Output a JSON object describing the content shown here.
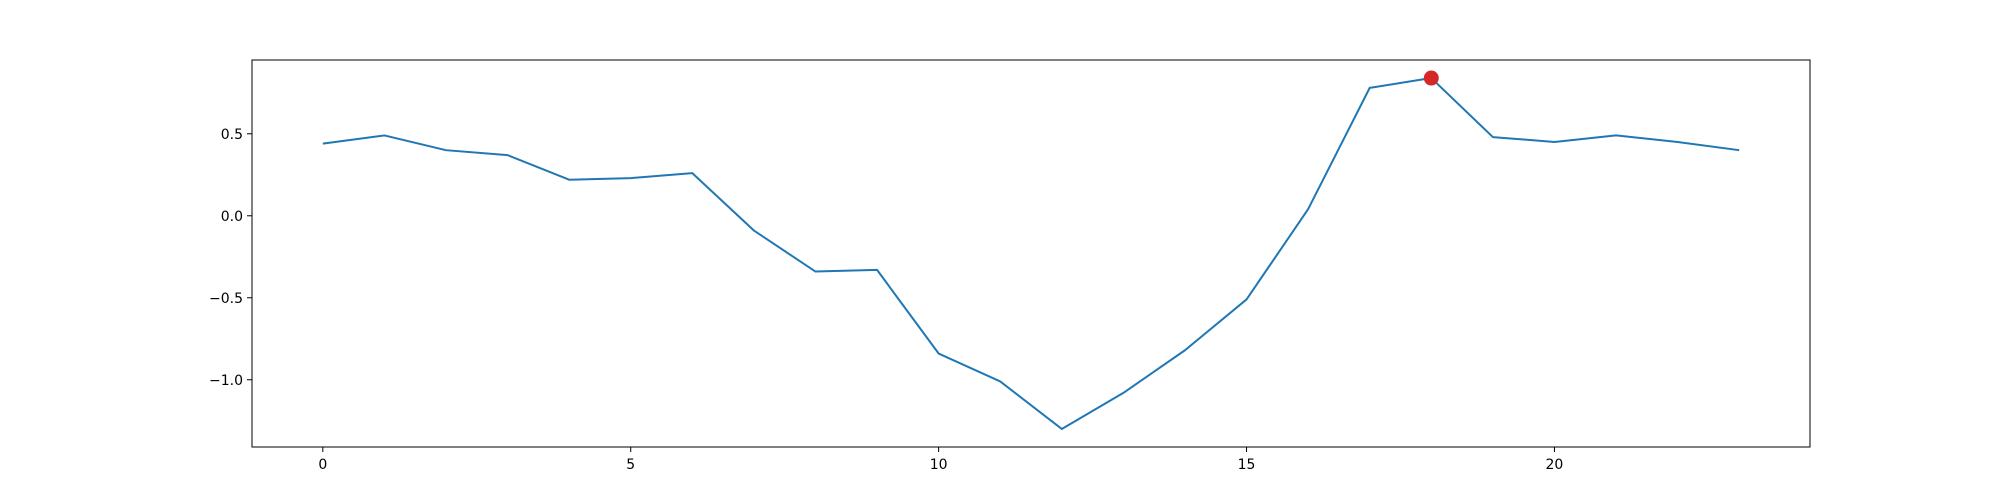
{
  "chart_data": {
    "type": "line",
    "title": "",
    "xlabel": "",
    "ylabel": "",
    "x": [
      0,
      1,
      2,
      3,
      4,
      5,
      6,
      7,
      8,
      9,
      10,
      11,
      12,
      13,
      14,
      15,
      16,
      17,
      18,
      19,
      20,
      21,
      22,
      23
    ],
    "series": [
      {
        "color": "#1f77b4",
        "values": [
          0.44,
          0.49,
          0.4,
          0.37,
          0.22,
          0.23,
          0.26,
          -0.09,
          -0.34,
          -0.33,
          -0.84,
          -1.01,
          -1.3,
          -1.08,
          -0.82,
          -0.51,
          0.04,
          0.78,
          0.84,
          0.48,
          0.45,
          0.49,
          0.45,
          0.4
        ]
      }
    ],
    "highlight": {
      "x": 18,
      "y": 0.84,
      "color": "#d62728"
    },
    "xlim": [
      -1.15,
      24.15
    ],
    "ylim": [
      -1.41,
      0.95
    ],
    "xticks": [
      0,
      5,
      10,
      15,
      20
    ],
    "xtick_labels": [
      "0",
      "5",
      "10",
      "15",
      "20"
    ],
    "yticks": [
      0.5,
      0.0,
      -0.5,
      -1.0
    ],
    "ytick_labels": [
      "0.5",
      "0.0",
      "−0.5",
      "−1.0"
    ],
    "grid": false,
    "legend": "none"
  }
}
